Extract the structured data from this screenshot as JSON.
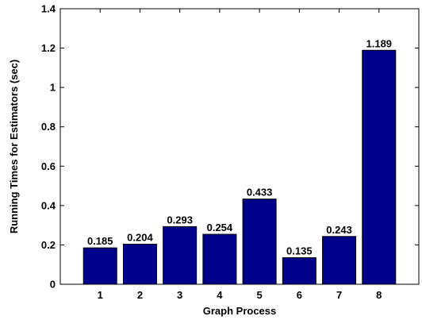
{
  "chart_data": {
    "type": "bar",
    "categories": [
      "1",
      "2",
      "3",
      "4",
      "5",
      "6",
      "7",
      "8"
    ],
    "values": [
      0.185,
      0.204,
      0.293,
      0.254,
      0.433,
      0.135,
      0.243,
      1.189
    ],
    "data_labels": [
      "0.185",
      "0.204",
      "0.293",
      "0.254",
      "0.433",
      "0.135",
      "0.243",
      "1.189"
    ],
    "title": "",
    "xlabel": "Graph Process",
    "ylabel": "Running Times for Estimators (sec)",
    "ylim": [
      0,
      1.4
    ],
    "yticks": [
      0,
      0.2,
      0.4,
      0.6,
      0.8,
      1,
      1.2,
      1.4
    ],
    "ytick_labels": [
      "0",
      "0.2",
      "0.4",
      "0.6",
      "0.8",
      "1",
      "1.2",
      "1.4"
    ],
    "grid": false,
    "legend": "none",
    "colors": {
      "bar_fill": "#00008b",
      "bar_edge": "#000000",
      "axis": "#000000"
    }
  }
}
